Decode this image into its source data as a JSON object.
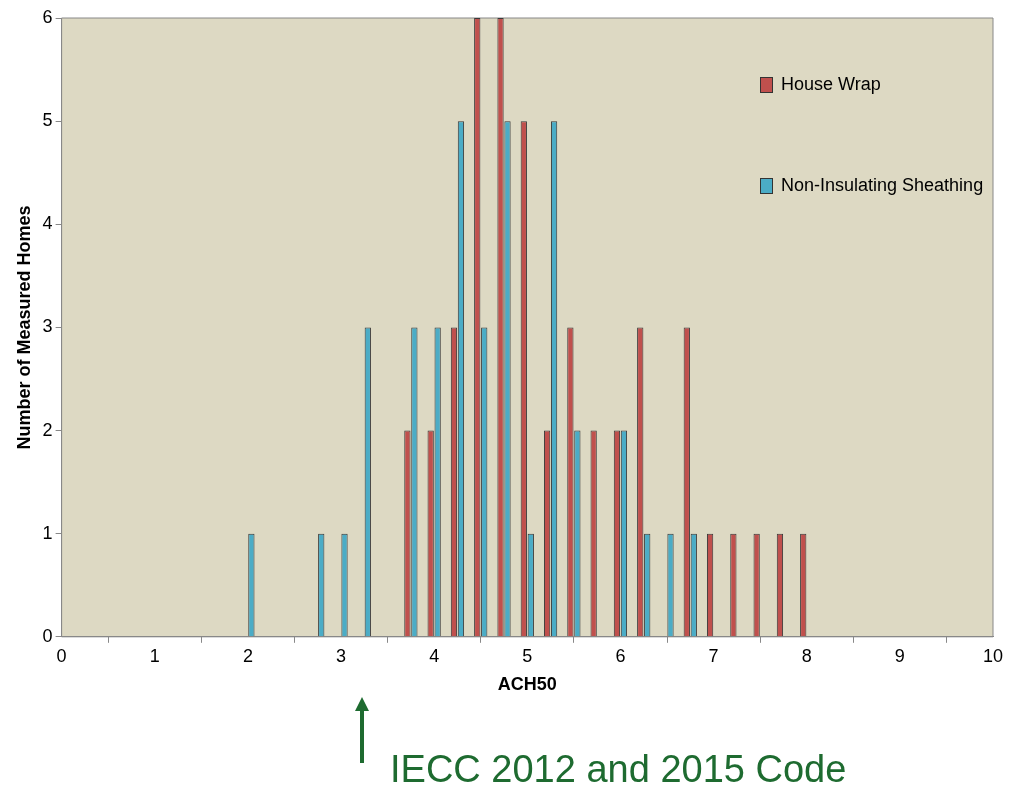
{
  "chart_data": {
    "type": "bar",
    "xlabel": "ACH50",
    "ylabel": "Number of Measured Homes",
    "x": [
      2,
      2.25,
      2.5,
      2.75,
      3,
      3.25,
      3.5,
      3.75,
      4,
      4.25,
      4.5,
      4.75,
      5,
      5.25,
      5.5,
      5.75,
      6,
      6.25,
      6.5,
      6.75,
      7,
      7.25,
      7.5,
      7.75,
      8
    ],
    "series": [
      {
        "name": "House Wrap",
        "color": "#c0504d",
        "values": [
          0,
          0,
          0,
          0,
          0,
          0,
          0,
          2,
          2,
          3,
          6,
          6,
          5,
          2,
          3,
          2,
          2,
          3,
          0,
          3,
          1,
          1,
          1,
          1,
          1
        ]
      },
      {
        "name": "Non-Insulating Sheathing",
        "color": "#4bacc6",
        "values": [
          1,
          0,
          0,
          1,
          1,
          3,
          0,
          3,
          3,
          5,
          3,
          5,
          1,
          5,
          2,
          0,
          2,
          1,
          1,
          1,
          0,
          0,
          0,
          0,
          0
        ]
      }
    ],
    "xlim": [
      0,
      10
    ],
    "xticks": [
      0,
      1,
      2,
      3,
      4,
      5,
      6,
      7,
      8,
      9,
      10
    ],
    "ylim": [
      0,
      6
    ],
    "yticks": [
      0,
      1,
      2,
      3,
      4,
      5,
      6
    ],
    "grid": false,
    "legend": "top right",
    "annotations": [
      "IECC 2012 and 2015 Code"
    ]
  }
}
